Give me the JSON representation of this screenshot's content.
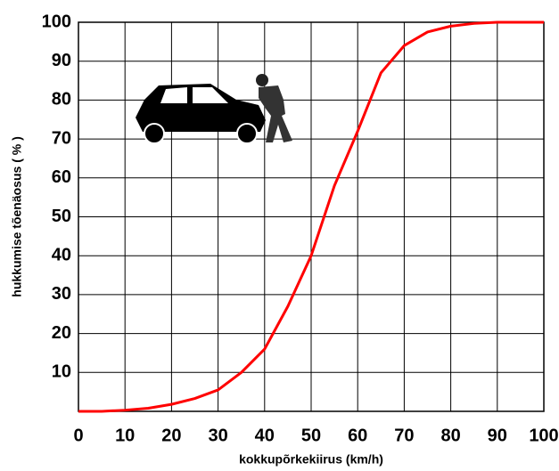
{
  "chart_data": {
    "type": "line",
    "x_label": "kokkupõrkekiirus (km/h)",
    "y_label": "hukkumise tõenäosus ( % )",
    "series": [
      {
        "color": "#ff0000",
        "x": [
          0,
          5,
          10,
          15,
          20,
          25,
          30,
          35,
          40,
          45,
          50,
          55,
          60,
          65,
          70,
          75,
          80,
          85,
          90,
          95,
          100
        ],
        "values": [
          0,
          0,
          0.3,
          0.8,
          1.8,
          3.3,
          5.5,
          10,
          16,
          27,
          40,
          58,
          72,
          87,
          94,
          97.5,
          99,
          99.7,
          100,
          100,
          100
        ]
      }
    ],
    "xlim": [
      0,
      100
    ],
    "ylim": [
      0,
      100
    ],
    "xticks": [
      0,
      10,
      20,
      30,
      40,
      50,
      60,
      70,
      80,
      90,
      100
    ],
    "yticks": [
      10,
      20,
      30,
      40,
      50,
      60,
      70,
      80,
      90,
      100
    ],
    "grid": true
  }
}
